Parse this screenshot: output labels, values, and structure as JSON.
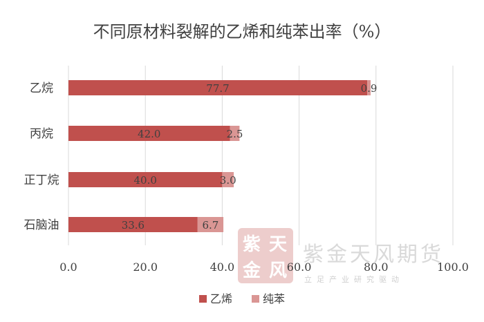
{
  "chart_data": {
    "type": "bar",
    "orientation": "horizontal",
    "stacked": true,
    "title": "不同原材料裂解的乙烯和纯苯出率（%）",
    "categories": [
      "乙烷",
      "丙烷",
      "正丁烷",
      "石脑油"
    ],
    "series": [
      {
        "name": "乙烯",
        "values": [
          77.7,
          42.0,
          40.0,
          33.6
        ],
        "labels": [
          "77.7",
          "42.0",
          "40.0",
          "33.6"
        ],
        "color": "#c0504d"
      },
      {
        "name": "纯苯",
        "values": [
          0.9,
          2.5,
          3.0,
          6.7
        ],
        "labels": [
          "0.9",
          "2.5",
          "3.0",
          "6.7"
        ],
        "color": "#da9694"
      }
    ],
    "xlim": [
      0,
      100
    ],
    "xticks": [
      "0.0",
      "20.0",
      "40.0",
      "60.0",
      "80.0",
      "100.0"
    ],
    "grid": "vertical",
    "legend": "bottom"
  },
  "watermark": {
    "name": "紫金天风期货",
    "slogan": "立足产业研究驱动",
    "seal_chars": [
      "紫",
      "天",
      "金",
      "风"
    ]
  }
}
